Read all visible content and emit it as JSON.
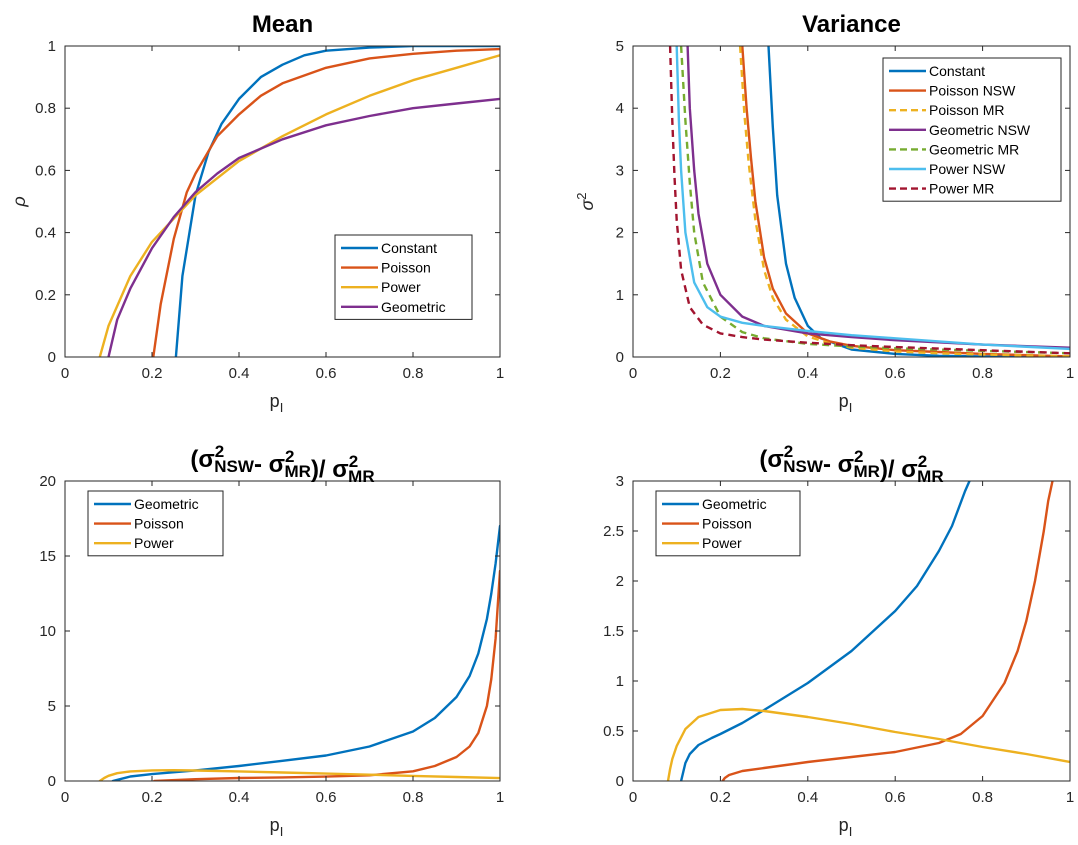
{
  "chart_data": [
    {
      "type": "line",
      "title": "Mean",
      "xlabel": "p",
      "xlabel_sub": "I",
      "ylabel": "ρ",
      "xlim": [
        0,
        1
      ],
      "ylim": [
        0,
        1
      ],
      "xticks": [
        "0",
        "0.2",
        "0.4",
        "0.6",
        "0.8",
        "1"
      ],
      "yticks": [
        "0",
        "0.2",
        "0.4",
        "0.6",
        "0.8",
        "1"
      ],
      "legend_position": "lower-right",
      "series": [
        {
          "name": "Constant",
          "color": "#0072BD",
          "dash": false,
          "x": [
            0.255,
            0.27,
            0.3,
            0.33,
            0.36,
            0.4,
            0.45,
            0.5,
            0.55,
            0.6,
            0.7,
            0.8,
            0.9,
            1.0
          ],
          "y": [
            0.0,
            0.26,
            0.52,
            0.66,
            0.75,
            0.83,
            0.9,
            0.94,
            0.97,
            0.985,
            0.995,
            1.0,
            1.0,
            1.0
          ]
        },
        {
          "name": "Poisson",
          "color": "#D95319",
          "dash": false,
          "x": [
            0.203,
            0.22,
            0.25,
            0.28,
            0.3,
            0.35,
            0.4,
            0.45,
            0.5,
            0.6,
            0.7,
            0.8,
            0.9,
            1.0
          ],
          "y": [
            0.0,
            0.17,
            0.38,
            0.53,
            0.59,
            0.71,
            0.78,
            0.84,
            0.88,
            0.93,
            0.96,
            0.975,
            0.985,
            0.99
          ]
        },
        {
          "name": "Power",
          "color": "#EDB120",
          "dash": false,
          "x": [
            0.08,
            0.1,
            0.15,
            0.2,
            0.3,
            0.4,
            0.5,
            0.6,
            0.7,
            0.8,
            0.9,
            1.0
          ],
          "y": [
            0.0,
            0.1,
            0.26,
            0.37,
            0.52,
            0.63,
            0.71,
            0.78,
            0.84,
            0.89,
            0.93,
            0.97
          ]
        },
        {
          "name": "Geometric",
          "color": "#7E2F8E",
          "dash": false,
          "x": [
            0.1,
            0.12,
            0.15,
            0.2,
            0.25,
            0.3,
            0.35,
            0.4,
            0.5,
            0.6,
            0.7,
            0.8,
            0.9,
            1.0
          ],
          "y": [
            0.0,
            0.12,
            0.22,
            0.35,
            0.45,
            0.53,
            0.59,
            0.64,
            0.7,
            0.745,
            0.775,
            0.8,
            0.815,
            0.83
          ]
        }
      ]
    },
    {
      "type": "line",
      "title": "Variance",
      "xlabel": "p",
      "xlabel_sub": "I",
      "ylabel": "σ",
      "ylabel_sup": "2",
      "xlim": [
        0,
        1
      ],
      "ylim": [
        0,
        5
      ],
      "xticks": [
        "0",
        "0.2",
        "0.4",
        "0.6",
        "0.8",
        "1"
      ],
      "yticks": [
        "0",
        "1",
        "2",
        "3",
        "4",
        "5"
      ],
      "legend_position": "top-right",
      "series": [
        {
          "name": "Constant",
          "color": "#0072BD",
          "dash": false,
          "x": [
            0.31,
            0.32,
            0.33,
            0.35,
            0.37,
            0.4,
            0.43,
            0.5,
            0.6,
            0.7,
            0.8,
            1.0
          ],
          "y": [
            5.0,
            3.7,
            2.6,
            1.5,
            0.95,
            0.5,
            0.3,
            0.12,
            0.05,
            0.02,
            0.01,
            0.0
          ]
        },
        {
          "name": "Poisson NSW",
          "color": "#D95319",
          "dash": false,
          "x": [
            0.25,
            0.26,
            0.27,
            0.28,
            0.3,
            0.32,
            0.35,
            0.4,
            0.45,
            0.5,
            0.6,
            0.7,
            0.8,
            1.0
          ],
          "y": [
            5.0,
            4.0,
            3.2,
            2.5,
            1.6,
            1.1,
            0.7,
            0.38,
            0.25,
            0.18,
            0.11,
            0.08,
            0.05,
            0.01
          ]
        },
        {
          "name": "Poisson MR",
          "color": "#EDB120",
          "dash": true,
          "x": [
            0.245,
            0.255,
            0.265,
            0.28,
            0.3,
            0.32,
            0.35,
            0.4,
            0.45,
            0.5,
            0.6,
            0.7,
            0.8,
            1.0
          ],
          "y": [
            5.0,
            3.9,
            3.1,
            2.2,
            1.4,
            0.95,
            0.6,
            0.33,
            0.22,
            0.15,
            0.09,
            0.06,
            0.04,
            0.01
          ]
        },
        {
          "name": "Geometric NSW",
          "color": "#7E2F8E",
          "dash": false,
          "x": [
            0.125,
            0.13,
            0.14,
            0.15,
            0.17,
            0.2,
            0.25,
            0.3,
            0.4,
            0.5,
            0.6,
            0.8,
            1.0
          ],
          "y": [
            5.0,
            4.0,
            3.0,
            2.3,
            1.5,
            1.0,
            0.65,
            0.5,
            0.38,
            0.32,
            0.27,
            0.2,
            0.15
          ]
        },
        {
          "name": "Geometric MR",
          "color": "#77AC30",
          "dash": true,
          "x": [
            0.11,
            0.12,
            0.13,
            0.14,
            0.16,
            0.2,
            0.25,
            0.3,
            0.4,
            0.5,
            0.6,
            0.8,
            1.0
          ],
          "y": [
            5.0,
            3.8,
            2.8,
            2.0,
            1.2,
            0.65,
            0.4,
            0.3,
            0.21,
            0.17,
            0.14,
            0.1,
            0.06
          ]
        },
        {
          "name": "Power NSW",
          "color": "#4DBEEE",
          "dash": false,
          "x": [
            0.1,
            0.105,
            0.11,
            0.12,
            0.14,
            0.17,
            0.2,
            0.25,
            0.3,
            0.4,
            0.5,
            0.6,
            0.8,
            1.0
          ],
          "y": [
            5.0,
            3.8,
            3.0,
            2.0,
            1.2,
            0.8,
            0.65,
            0.55,
            0.5,
            0.42,
            0.35,
            0.3,
            0.2,
            0.13
          ]
        },
        {
          "name": "Power MR",
          "color": "#A2142F",
          "dash": true,
          "x": [
            0.085,
            0.09,
            0.095,
            0.1,
            0.11,
            0.13,
            0.16,
            0.2,
            0.25,
            0.3,
            0.4,
            0.5,
            0.6,
            0.8,
            1.0
          ],
          "y": [
            5.0,
            3.8,
            2.9,
            2.2,
            1.4,
            0.8,
            0.52,
            0.38,
            0.32,
            0.28,
            0.23,
            0.19,
            0.16,
            0.11,
            0.06
          ]
        }
      ]
    },
    {
      "type": "line",
      "title_parts": [
        "(σ",
        "2",
        "NSW",
        "- σ",
        "2",
        "MR",
        ")/ σ",
        "2",
        "MR"
      ],
      "xlabel": "p",
      "xlabel_sub": "I",
      "xlim": [
        0,
        1
      ],
      "ylim": [
        0,
        20
      ],
      "xticks": [
        "0",
        "0.2",
        "0.4",
        "0.6",
        "0.8",
        "1"
      ],
      "yticks": [
        "0",
        "5",
        "10",
        "15",
        "20"
      ],
      "legend_position": "top-left",
      "series": [
        {
          "name": "Geometric",
          "color": "#0072BD",
          "dash": false,
          "x": [
            0.11,
            0.15,
            0.2,
            0.3,
            0.4,
            0.5,
            0.6,
            0.7,
            0.8,
            0.85,
            0.9,
            0.93,
            0.95,
            0.97,
            0.98,
            0.99,
            1.0
          ],
          "y": [
            0.0,
            0.3,
            0.46,
            0.71,
            1.0,
            1.35,
            1.7,
            2.3,
            3.3,
            4.2,
            5.6,
            7.0,
            8.5,
            10.8,
            12.5,
            14.5,
            17.0
          ]
        },
        {
          "name": "Poisson",
          "color": "#D95319",
          "dash": false,
          "x": [
            0.205,
            0.3,
            0.4,
            0.5,
            0.6,
            0.7,
            0.8,
            0.85,
            0.9,
            0.93,
            0.95,
            0.97,
            0.98,
            0.99,
            1.0
          ],
          "y": [
            0.0,
            0.12,
            0.2,
            0.24,
            0.29,
            0.38,
            0.65,
            1.0,
            1.6,
            2.3,
            3.2,
            5.0,
            6.8,
            9.5,
            14.0
          ]
        },
        {
          "name": "Power",
          "color": "#EDB120",
          "dash": false,
          "x": [
            0.08,
            0.09,
            0.1,
            0.12,
            0.15,
            0.2,
            0.25,
            0.3,
            0.4,
            0.5,
            0.6,
            0.7,
            0.8,
            0.9,
            1.0
          ],
          "y": [
            0.0,
            0.2,
            0.35,
            0.52,
            0.64,
            0.71,
            0.72,
            0.7,
            0.64,
            0.57,
            0.49,
            0.42,
            0.34,
            0.27,
            0.19
          ]
        }
      ]
    },
    {
      "type": "line",
      "title_parts": [
        "(σ",
        "2",
        "NSW",
        "- σ",
        "2",
        "MR",
        ")/ σ",
        "2",
        "MR"
      ],
      "xlabel": "p",
      "xlabel_sub": "I",
      "xlim": [
        0,
        1
      ],
      "ylim": [
        0,
        3
      ],
      "xticks": [
        "0",
        "0.2",
        "0.4",
        "0.6",
        "0.8",
        "1"
      ],
      "yticks": [
        "0",
        "0.5",
        "1",
        "1.5",
        "2",
        "2.5",
        "3"
      ],
      "legend_position": "top-left",
      "series": [
        {
          "name": "Geometric",
          "color": "#0072BD",
          "dash": false,
          "x": [
            0.11,
            0.12,
            0.13,
            0.15,
            0.18,
            0.2,
            0.25,
            0.3,
            0.4,
            0.5,
            0.6,
            0.65,
            0.7,
            0.73,
            0.76,
            0.77
          ],
          "y": [
            0.0,
            0.18,
            0.27,
            0.36,
            0.43,
            0.47,
            0.58,
            0.71,
            0.98,
            1.3,
            1.7,
            1.95,
            2.3,
            2.55,
            2.9,
            3.0
          ]
        },
        {
          "name": "Poisson",
          "color": "#D95319",
          "dash": false,
          "x": [
            0.205,
            0.21,
            0.22,
            0.25,
            0.3,
            0.35,
            0.4,
            0.5,
            0.6,
            0.7,
            0.75,
            0.8,
            0.85,
            0.88,
            0.9,
            0.92,
            0.94,
            0.95,
            0.96
          ],
          "y": [
            0.0,
            0.03,
            0.06,
            0.1,
            0.13,
            0.16,
            0.19,
            0.24,
            0.29,
            0.38,
            0.47,
            0.65,
            0.98,
            1.3,
            1.6,
            2.0,
            2.5,
            2.8,
            3.0
          ]
        },
        {
          "name": "Power",
          "color": "#EDB120",
          "dash": false,
          "x": [
            0.08,
            0.085,
            0.09,
            0.1,
            0.12,
            0.15,
            0.2,
            0.25,
            0.3,
            0.4,
            0.5,
            0.6,
            0.7,
            0.8,
            0.9,
            1.0
          ],
          "y": [
            0.0,
            0.12,
            0.22,
            0.35,
            0.52,
            0.64,
            0.71,
            0.72,
            0.7,
            0.64,
            0.57,
            0.49,
            0.42,
            0.34,
            0.27,
            0.19
          ]
        }
      ]
    }
  ]
}
